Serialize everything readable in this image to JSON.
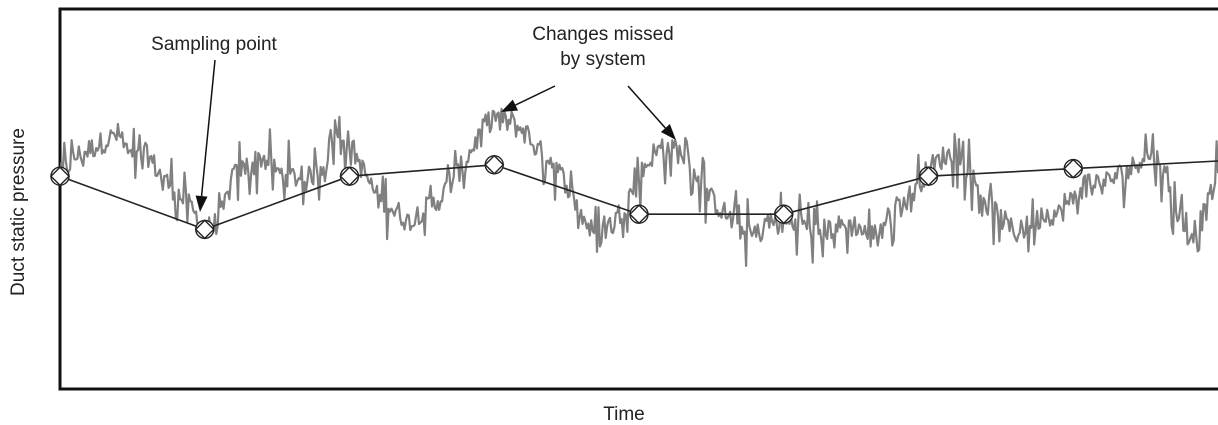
{
  "chart_data": {
    "type": "line",
    "title": "",
    "xlabel": "Time",
    "ylabel": "Duct static pressure",
    "xlim": [
      0,
      8
    ],
    "ylim": [
      0,
      10
    ],
    "grid": false,
    "series": [
      {
        "role": "actual",
        "color": "#808080",
        "x": [
          0,
          0.1,
          0.2,
          0.3,
          0.4,
          0.5,
          0.6,
          0.7,
          0.8,
          0.9,
          1.0,
          1.1,
          1.2,
          1.3,
          1.4,
          1.5,
          1.6,
          1.7,
          1.8,
          1.9,
          2.0,
          2.1,
          2.2,
          2.3,
          2.4,
          2.5,
          2.6,
          2.7,
          2.8,
          2.9,
          3.0,
          3.1,
          3.2,
          3.3,
          3.4,
          3.5,
          3.6,
          3.7,
          3.8,
          3.9,
          4.0,
          4.1,
          4.2,
          4.3,
          4.4,
          4.5,
          4.6,
          4.7,
          4.8,
          4.9,
          5.0,
          5.1,
          5.2,
          5.3,
          5.4,
          5.5,
          5.6,
          5.7,
          5.8,
          5.9,
          6.0,
          6.1,
          6.2,
          6.3,
          6.4,
          6.5,
          6.6,
          6.7,
          6.8,
          6.9,
          7.0,
          7.1,
          7.2,
          7.3,
          7.4,
          7.5,
          7.6,
          7.7,
          7.8,
          7.9,
          8.0
        ],
        "values": [
          5.6,
          6.1,
          6.3,
          6.5,
          6.7,
          6.0,
          6.2,
          5.6,
          5.2,
          4.8,
          4.2,
          4.4,
          5.6,
          5.9,
          6.1,
          5.7,
          5.6,
          5.5,
          5.8,
          6.7,
          6.5,
          5.7,
          5.0,
          4.8,
          4.4,
          4.7,
          4.9,
          5.4,
          6.0,
          6.7,
          7.2,
          7.0,
          6.8,
          6.3,
          6.0,
          5.4,
          4.6,
          4.0,
          4.3,
          4.8,
          5.6,
          6.2,
          6.3,
          6.2,
          5.6,
          5.0,
          4.6,
          4.2,
          4.0,
          4.4,
          4.3,
          4.5,
          4.1,
          4.2,
          4.3,
          4.3,
          4.0,
          4.4,
          4.8,
          5.2,
          5.8,
          6.1,
          6.2,
          5.6,
          4.9,
          4.5,
          4.1,
          4.3,
          4.6,
          4.6,
          5.0,
          5.5,
          5.4,
          5.6,
          5.8,
          6.2,
          6.0,
          4.8,
          4.0,
          4.5,
          5.7
        ]
      },
      {
        "role": "sampled",
        "color": "#222222",
        "marker": "diamond",
        "x": [
          0,
          1,
          2,
          3,
          4,
          5,
          6,
          7,
          8
        ],
        "values": [
          5.6,
          4.2,
          5.6,
          5.9,
          4.6,
          4.6,
          5.6,
          5.8,
          6.0
        ]
      }
    ],
    "annotations": [
      {
        "text": "Sampling point",
        "target_x": 1
      },
      {
        "text_lines": [
          "Changes missed",
          "by system"
        ],
        "targets_x": [
          3.1,
          4.2
        ]
      }
    ]
  }
}
